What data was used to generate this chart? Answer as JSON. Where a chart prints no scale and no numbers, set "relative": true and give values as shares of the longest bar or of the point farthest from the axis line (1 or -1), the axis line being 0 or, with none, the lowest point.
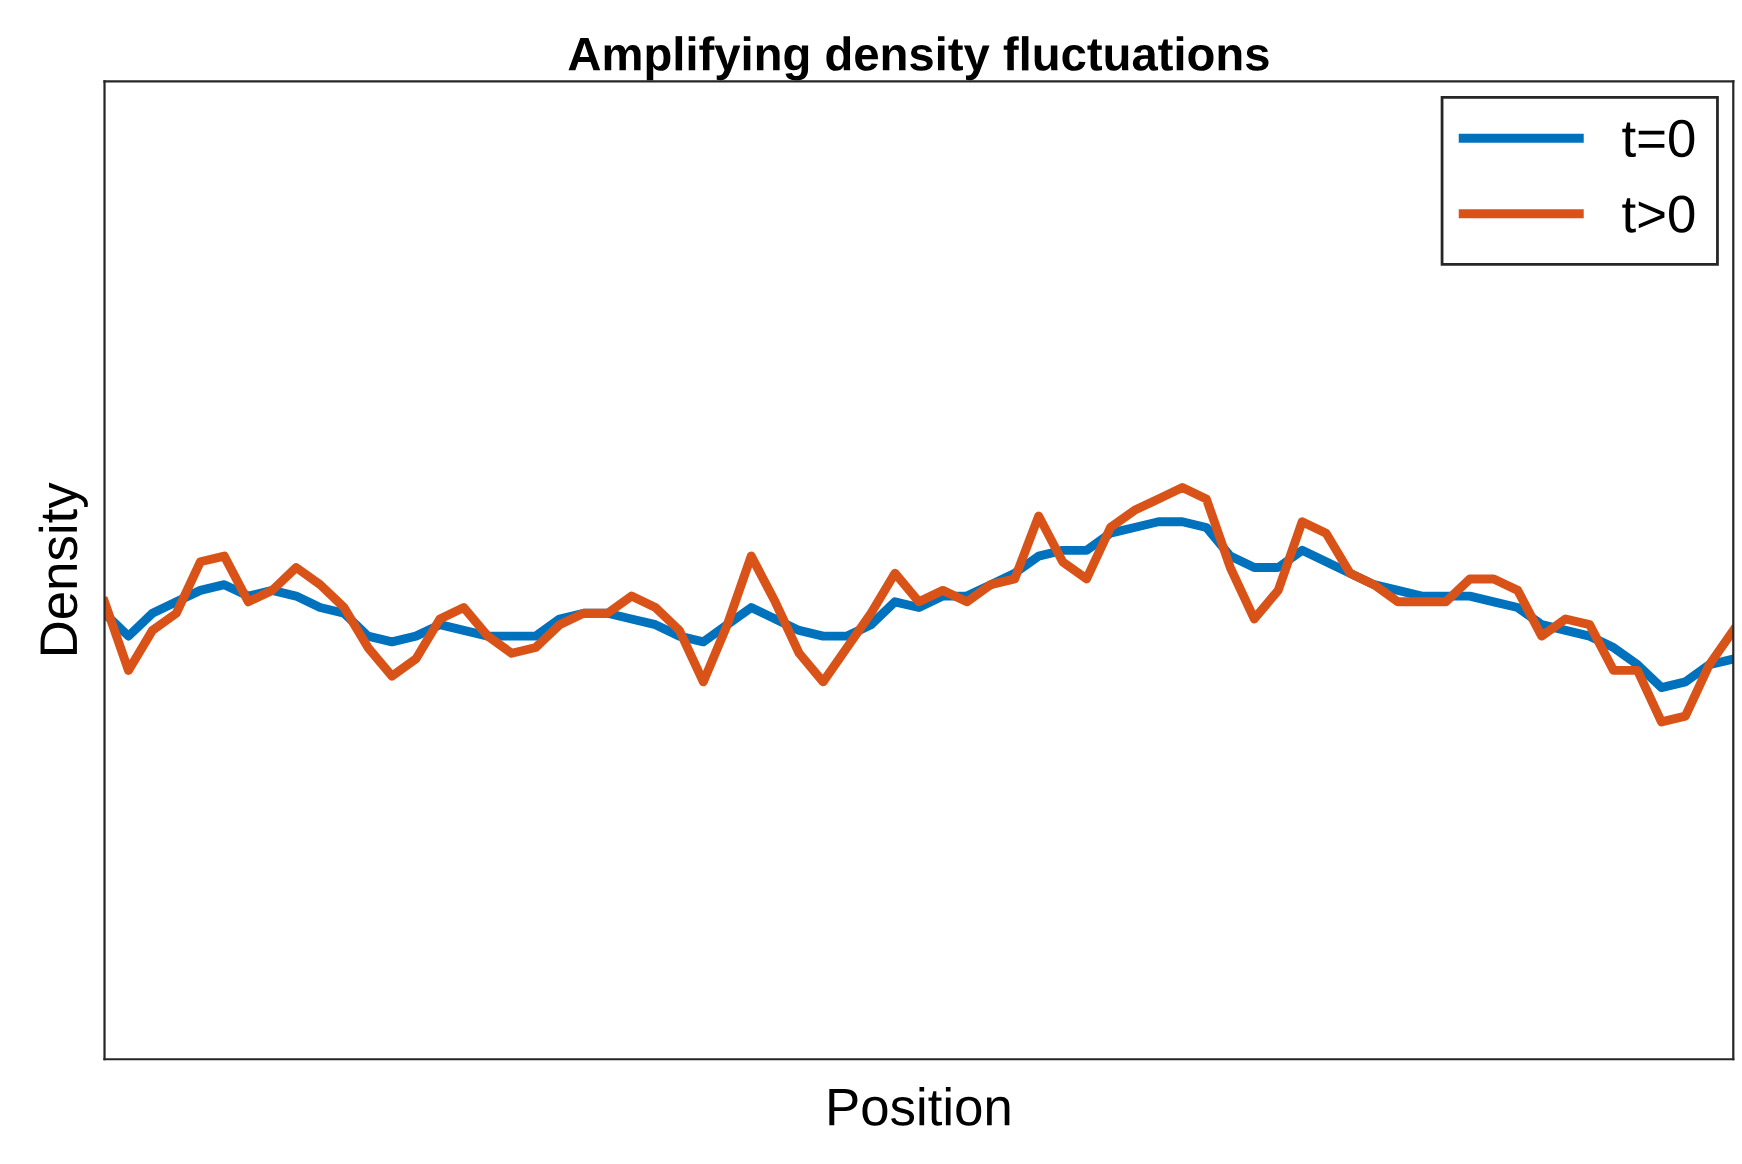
{
  "chart_data": {
    "type": "line",
    "title": "Amplifying density fluctuations",
    "xlabel": "Position",
    "ylabel": "Density",
    "relative": true,
    "legend": "top right",
    "line_style": "solid",
    "marker": "none",
    "categories": [
      null,
      null,
      null,
      null,
      null,
      null,
      null,
      null,
      null,
      null,
      null,
      null,
      null,
      null,
      null,
      null,
      null,
      null,
      null,
      null,
      null,
      null,
      null,
      null,
      null,
      null,
      null,
      null,
      null,
      null,
      null,
      null,
      null,
      null,
      null,
      null,
      null,
      null,
      null,
      null,
      null,
      null,
      null,
      null,
      null,
      null,
      null,
      null,
      null,
      null,
      null,
      null,
      null,
      null,
      null,
      null,
      null,
      null,
      null,
      null,
      null,
      null,
      null,
      null,
      null,
      null,
      null,
      null,
      null
    ],
    "series": [
      {
        "name": "t=0",
        "color": "#0072bd",
        "values": [
          0.78,
          0.74,
          0.78,
          0.8,
          0.82,
          0.83,
          0.81,
          0.82,
          0.81,
          0.79,
          0.78,
          0.74,
          0.73,
          0.74,
          0.76,
          0.75,
          0.74,
          0.74,
          0.74,
          0.77,
          0.78,
          0.78,
          0.77,
          0.76,
          0.74,
          0.73,
          0.76,
          0.79,
          0.77,
          0.75,
          0.74,
          0.74,
          0.76,
          0.8,
          0.79,
          0.81,
          0.81,
          0.83,
          0.85,
          0.88,
          0.89,
          0.89,
          0.92,
          0.93,
          0.94,
          0.94,
          0.93,
          0.88,
          0.86,
          0.86,
          0.89,
          0.87,
          0.85,
          0.83,
          0.82,
          0.81,
          0.81,
          0.81,
          0.8,
          0.79,
          0.76,
          0.75,
          0.74,
          0.72,
          0.69,
          0.65,
          0.66,
          0.69,
          0.7
        ]
      },
      {
        "name": "t>0",
        "color": "#d95319",
        "values": [
          0.8,
          0.68,
          0.75,
          0.78,
          0.87,
          0.88,
          0.8,
          0.82,
          0.86,
          0.83,
          0.79,
          0.72,
          0.67,
          0.7,
          0.77,
          0.79,
          0.74,
          0.71,
          0.72,
          0.76,
          0.78,
          0.78,
          0.81,
          0.79,
          0.75,
          0.66,
          0.76,
          0.88,
          0.8,
          0.71,
          0.66,
          0.72,
          0.78,
          0.85,
          0.8,
          0.82,
          0.8,
          0.83,
          0.84,
          0.95,
          0.87,
          0.84,
          0.93,
          0.96,
          0.98,
          1,
          0.98,
          0.86,
          0.77,
          0.82,
          0.94,
          0.92,
          0.85,
          0.83,
          0.8,
          0.8,
          0.8,
          0.84,
          0.84,
          0.82,
          0.74,
          0.77,
          0.76,
          0.68,
          0.68,
          0.59,
          0.6,
          0.69,
          0.75
        ]
      }
    ]
  }
}
